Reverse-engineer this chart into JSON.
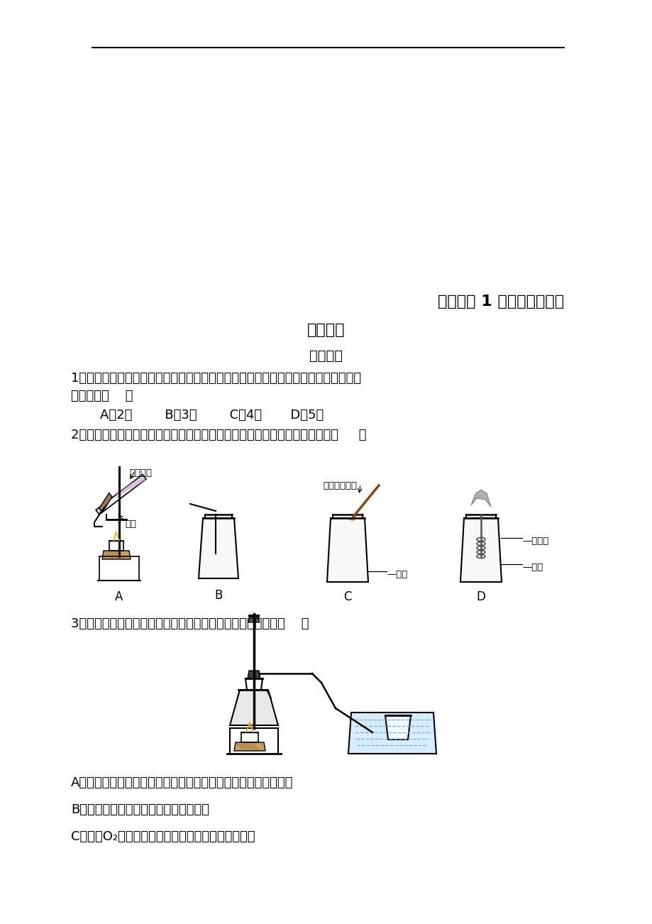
{
  "bg_color": "#ffffff",
  "title1": "实验活动 1 氧气的实验室制",
  "title2": "取与性质",
  "subtitle": "课后作业",
  "q1_line1": "1．将混有少量高锰酸锔的氯酸锔晶体装入试管中加热到不再产生气体为止，试管中的",
  "q1_line2": "固体共有（    ）",
  "q1_options": "    A．2种        B．3种        C．4种       D．5种",
  "q2_text": "2．图分别是实验室氧气制备、收集、验满、验证性质的操作，其中正确的是（     ）",
  "label_kmno4": "高锰酸锔",
  "label_cotton": "棉花",
  "label_spark": "带火星的木条",
  "label_o2_c": "—氧气",
  "label_iron": "—细铁丝",
  "label_o2_d": "—氧气",
  "fig_a": "A",
  "fig_b": "B",
  "fig_c": "C",
  "fig_d": "D",
  "q3_text": "3．实验室用如图所示装置制取氧气，下列实验操作正确的是（    ）",
  "q3_A": "A．加热前，将集气瓶注满水，用玻璃片盖着倒立在盛水的水槽中",
  "q3_B": "B．先将导管口移入集气瓶，再开始加热",
  "q3_C": "C．收集O₂后，将集气瓶移出水槽，然后盖上玻璃片"
}
